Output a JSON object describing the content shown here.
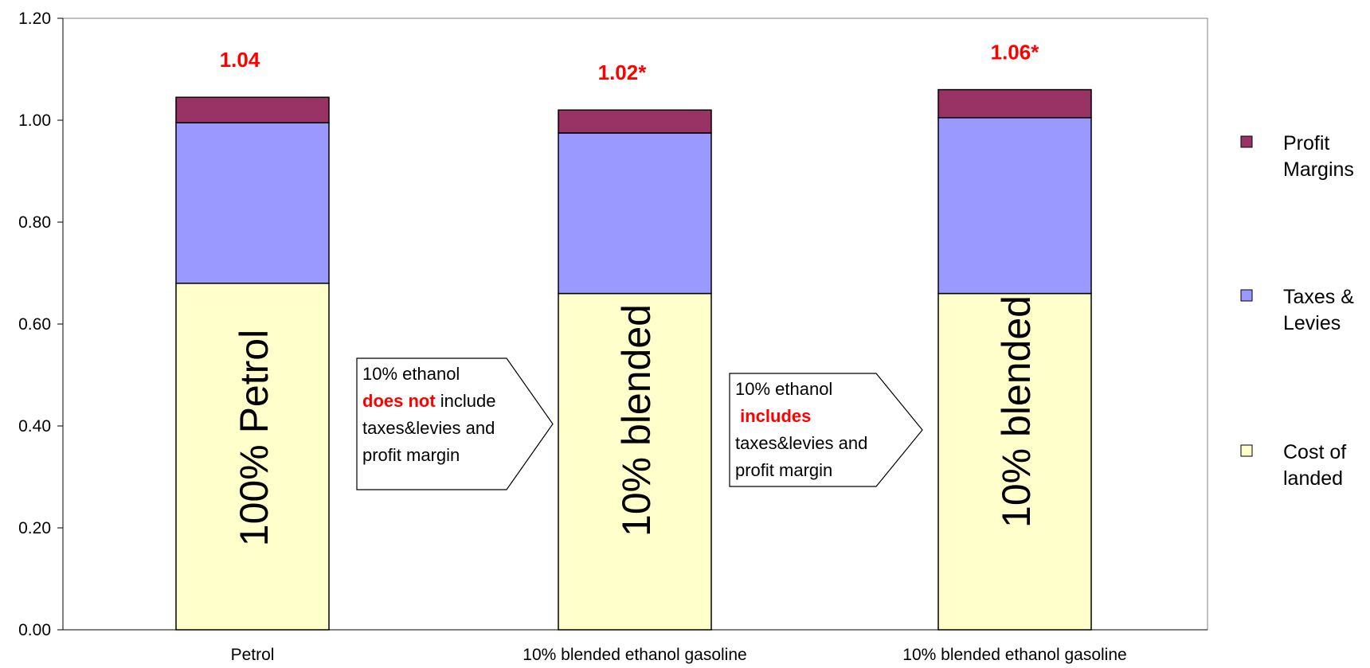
{
  "chart_data": {
    "type": "bar",
    "stacked": true,
    "categories": [
      "Petrol",
      "10% blended ethanol gasoline",
      "10% blended ethanol gasoline"
    ],
    "series": [
      {
        "name": "Cost of landed",
        "color": "#ffffcc",
        "values": [
          0.68,
          0.66,
          0.66
        ]
      },
      {
        "name": "Taxes & Levies",
        "color": "#9999ff",
        "values": [
          0.315,
          0.315,
          0.345
        ]
      },
      {
        "name": "Profit Margins",
        "color": "#993366",
        "values": [
          0.05,
          0.045,
          0.055
        ]
      }
    ],
    "totals": [
      "1.04",
      "1.02*",
      "1.06*"
    ],
    "bar_texts": [
      "100% Petrol",
      "10% blended",
      "10% blended"
    ],
    "ylim": [
      0,
      1.2
    ],
    "yticks": [
      "0.00",
      "0.20",
      "0.40",
      "0.60",
      "0.80",
      "1.00",
      "1.20"
    ],
    "ytick_values": [
      0,
      0.2,
      0.4,
      0.6,
      0.8,
      1.0,
      1.2
    ],
    "legend": {
      "placement": "right",
      "entries": [
        {
          "lines": [
            "Profit",
            "Margins"
          ],
          "color": "#993366"
        },
        {
          "lines": [
            "Taxes &",
            "Levies"
          ],
          "color": "#9999ff"
        },
        {
          "lines": [
            "Cost of",
            "landed"
          ],
          "color": "#ffffcc"
        }
      ]
    },
    "annotations": [
      {
        "lines": [
          [
            {
              "t": "10% ethanol",
              "red": false
            }
          ],
          [
            {
              "t": "does not",
              "red": true
            },
            {
              "t": " include",
              "red": false
            }
          ],
          [
            {
              "t": "taxes&levies and",
              "red": false
            }
          ],
          [
            {
              "t": "profit margin",
              "red": false
            }
          ]
        ]
      },
      {
        "lines": [
          [
            {
              "t": "10% ethanol",
              "red": false
            }
          ],
          [
            {
              "t": " includes",
              "red": true
            }
          ],
          [
            {
              "t": "taxes&levies and",
              "red": false
            }
          ],
          [
            {
              "t": "profit margin",
              "red": false
            }
          ]
        ]
      }
    ],
    "total_label_color": "#ff0000",
    "grid": false
  }
}
